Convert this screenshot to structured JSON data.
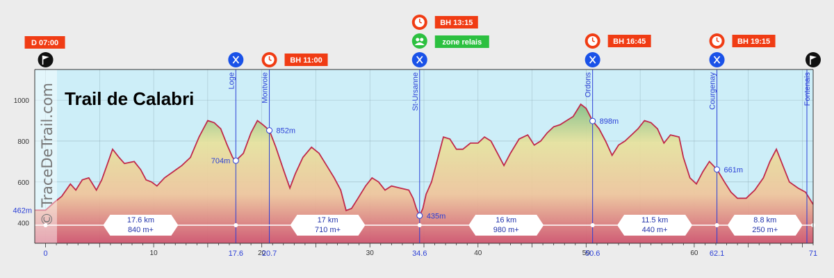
{
  "chart_data": {
    "type": "area",
    "title": "Trail de Calabri",
    "watermark": "© TraceDeTrail.com",
    "xlabel": "",
    "ylabel": "",
    "x_unit": "km",
    "y_unit": "m",
    "xlim": [
      -1,
      71
    ],
    "ylim": [
      300,
      1150
    ],
    "y_ticks": [
      400,
      600,
      800,
      1000
    ],
    "x_ticks": [
      0,
      10,
      20,
      30,
      40,
      50,
      60
    ],
    "colors": {
      "line": "#c0284a",
      "chart_bg": "#cdeef8",
      "grad_high": "#2a9d6f",
      "grad_mid": "#e8e29c",
      "grad_low": "#d0506a",
      "badge": "#f03c14",
      "relais": "#2cc040",
      "aid": "#1a52e8",
      "axis_blue": "#2a3fd6"
    },
    "profile": [
      [
        -1,
        462
      ],
      [
        0,
        462
      ],
      [
        0.8,
        500
      ],
      [
        1.5,
        530
      ],
      [
        2.3,
        590
      ],
      [
        2.8,
        560
      ],
      [
        3.4,
        610
      ],
      [
        4,
        620
      ],
      [
        4.7,
        560
      ],
      [
        5.2,
        610
      ],
      [
        5.8,
        700
      ],
      [
        6.2,
        760
      ],
      [
        6.8,
        720
      ],
      [
        7.3,
        690
      ],
      [
        8.2,
        700
      ],
      [
        8.8,
        660
      ],
      [
        9.3,
        610
      ],
      [
        9.8,
        600
      ],
      [
        10.3,
        580
      ],
      [
        11,
        620
      ],
      [
        11.8,
        650
      ],
      [
        12.6,
        680
      ],
      [
        13.4,
        720
      ],
      [
        14.2,
        820
      ],
      [
        15.0,
        900
      ],
      [
        15.6,
        890
      ],
      [
        16.2,
        860
      ],
      [
        16.8,
        780
      ],
      [
        17.3,
        720
      ],
      [
        17.6,
        704
      ],
      [
        18.3,
        740
      ],
      [
        19.0,
        840
      ],
      [
        19.6,
        900
      ],
      [
        20.1,
        880
      ],
      [
        20.7,
        852
      ],
      [
        21.3,
        770
      ],
      [
        22.0,
        660
      ],
      [
        22.6,
        570
      ],
      [
        23.1,
        640
      ],
      [
        23.8,
        720
      ],
      [
        24.6,
        770
      ],
      [
        25.3,
        740
      ],
      [
        26.0,
        680
      ],
      [
        26.7,
        620
      ],
      [
        27.3,
        560
      ],
      [
        27.8,
        460
      ],
      [
        28.3,
        470
      ],
      [
        28.9,
        520
      ],
      [
        29.6,
        580
      ],
      [
        30.2,
        620
      ],
      [
        30.8,
        600
      ],
      [
        31.4,
        560
      ],
      [
        32.0,
        580
      ],
      [
        32.8,
        570
      ],
      [
        33.6,
        560
      ],
      [
        34.0,
        520
      ],
      [
        34.3,
        470
      ],
      [
        34.6,
        435
      ],
      [
        34.9,
        470
      ],
      [
        35.2,
        540
      ],
      [
        35.7,
        600
      ],
      [
        36.2,
        700
      ],
      [
        36.8,
        820
      ],
      [
        37.4,
        810
      ],
      [
        38.0,
        760
      ],
      [
        38.6,
        760
      ],
      [
        39.3,
        790
      ],
      [
        40.0,
        790
      ],
      [
        40.6,
        820
      ],
      [
        41.2,
        800
      ],
      [
        41.8,
        740
      ],
      [
        42.4,
        680
      ],
      [
        43.0,
        740
      ],
      [
        43.8,
        810
      ],
      [
        44.6,
        830
      ],
      [
        45.2,
        780
      ],
      [
        45.8,
        800
      ],
      [
        46.4,
        840
      ],
      [
        47.0,
        870
      ],
      [
        47.6,
        880
      ],
      [
        48.2,
        900
      ],
      [
        48.8,
        920
      ],
      [
        49.5,
        980
      ],
      [
        50.0,
        960
      ],
      [
        50.6,
        898
      ],
      [
        51.2,
        860
      ],
      [
        51.8,
        800
      ],
      [
        52.4,
        730
      ],
      [
        53.0,
        780
      ],
      [
        53.6,
        800
      ],
      [
        54.2,
        830
      ],
      [
        54.8,
        860
      ],
      [
        55.4,
        900
      ],
      [
        56.0,
        890
      ],
      [
        56.6,
        860
      ],
      [
        57.2,
        790
      ],
      [
        57.8,
        830
      ],
      [
        58.6,
        820
      ],
      [
        59.0,
        720
      ],
      [
        59.6,
        620
      ],
      [
        60.2,
        590
      ],
      [
        60.8,
        650
      ],
      [
        61.4,
        700
      ],
      [
        62.1,
        661
      ],
      [
        62.8,
        600
      ],
      [
        63.4,
        550
      ],
      [
        64.0,
        520
      ],
      [
        64.8,
        520
      ],
      [
        65.6,
        560
      ],
      [
        66.4,
        620
      ],
      [
        67.0,
        700
      ],
      [
        67.6,
        760
      ],
      [
        68.2,
        680
      ],
      [
        68.8,
        600
      ],
      [
        69.6,
        570
      ],
      [
        70.3,
        550
      ],
      [
        71,
        490
      ]
    ],
    "start": {
      "km": 0,
      "label": "0",
      "badge": "D 07:00"
    },
    "finish": {
      "km": 71,
      "label": "71",
      "name": "Fontenais"
    },
    "waypoints": [
      {
        "km": 17.6,
        "km_label": "17.6",
        "name": "Loge",
        "alt": 704,
        "alt_label": "704m",
        "alt_label_side": "left",
        "icons": [
          "aid"
        ]
      },
      {
        "km": 20.7,
        "km_label": "20.7",
        "name": "Montvoie",
        "alt": 852,
        "alt_label": "852m",
        "alt_label_side": "right",
        "icons": [
          "clock"
        ],
        "badge": "BH 11:00"
      },
      {
        "km": 34.6,
        "km_label": "34.6",
        "name": "St-Ursanne",
        "alt": 435,
        "alt_label": "435m",
        "alt_label_side": "right",
        "icons": [
          "aid",
          "relais",
          "clock"
        ],
        "badge": "BH 13:15",
        "relais_label": "zone relais"
      },
      {
        "km": 50.6,
        "km_label": "50.6",
        "name": "Ordons",
        "alt": 898,
        "alt_label": "898m",
        "alt_label_side": "right",
        "icons": [
          "aid",
          "clock"
        ],
        "badge": "BH 16:45"
      },
      {
        "km": 62.1,
        "km_label": "62.1",
        "name": "Courgenay",
        "alt": 661,
        "alt_label": "661m",
        "alt_label_side": "right",
        "icons": [
          "aid",
          "clock"
        ],
        "badge": "BH 19:15"
      }
    ],
    "start_alt_label": "462m",
    "segments": [
      {
        "from": 0,
        "to": 17.6,
        "distance": "17.6 km",
        "gain": "840 m+"
      },
      {
        "from": 17.6,
        "to": 34.6,
        "distance": "17 km",
        "gain": "710 m+"
      },
      {
        "from": 34.6,
        "to": 50.6,
        "distance": "16 km",
        "gain": "980 m+"
      },
      {
        "from": 50.6,
        "to": 62.1,
        "distance": "11.5 km",
        "gain": "440 m+"
      },
      {
        "from": 62.1,
        "to": 71,
        "distance": "8.8 km",
        "gain": "250 m+"
      }
    ]
  }
}
